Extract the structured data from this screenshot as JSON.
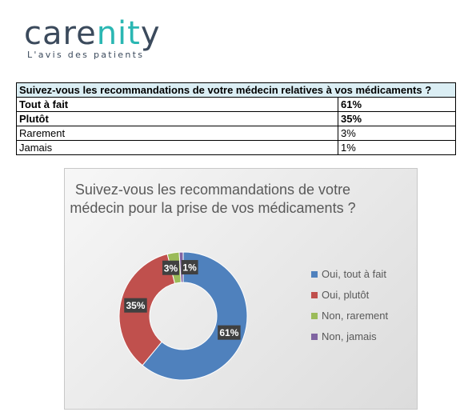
{
  "logo": {
    "name_left": "care",
    "name_mid": "nit",
    "name_right": "y",
    "tagline": "L'avis des patients"
  },
  "table": {
    "header": "Suivez-vous les recommandations de votre médecin relatives à vos médicaments ?",
    "rows": [
      {
        "label": "Tout à fait",
        "value": "61%",
        "bold": true
      },
      {
        "label": "Plutôt",
        "value": "35%",
        "bold": true
      },
      {
        "label": "Rarement",
        "value": "3%",
        "bold": false
      },
      {
        "label": "Jamais",
        "value": "1%",
        "bold": false
      }
    ]
  },
  "chart_data": {
    "type": "pie",
    "donut": true,
    "title_lines": [
      "Suivez-vous les recommandations de votre",
      "médecin pour la prise de vos médicaments ?"
    ],
    "categories": [
      "Oui, tout à fait",
      "Oui, plutôt",
      "Non, rarement",
      "Non, jamais"
    ],
    "values": [
      61,
      35,
      3,
      1
    ],
    "data_labels": [
      "61%",
      "35%",
      "3%",
      "1%"
    ],
    "colors": [
      "#4f81bd",
      "#c0504d",
      "#9bbb59",
      "#8064a2"
    ],
    "legend_position": "right"
  }
}
